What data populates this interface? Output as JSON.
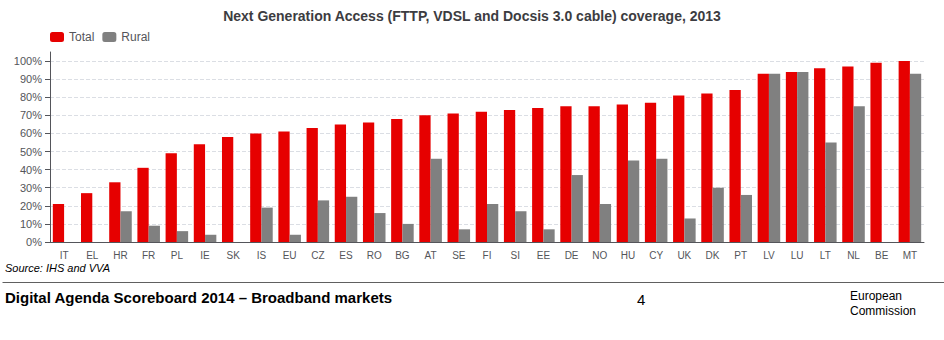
{
  "chart_data": {
    "type": "bar",
    "title": "Next Generation Access (FTTP, VDSL and Docsis 3.0 cable) coverage, 2013",
    "categories": [
      "IT",
      "EL",
      "HR",
      "FR",
      "PL",
      "IE",
      "SK",
      "IS",
      "EU",
      "CZ",
      "ES",
      "RO",
      "BG",
      "AT",
      "SE",
      "FI",
      "SI",
      "EE",
      "DE",
      "NO",
      "HU",
      "CY",
      "UK",
      "DK",
      "PT",
      "LV",
      "LU",
      "LT",
      "NL",
      "BE",
      "MT"
    ],
    "series": [
      {
        "name": "Total",
        "color": "#e60000",
        "values": [
          21,
          27,
          33,
          41,
          49,
          54,
          58,
          60,
          61,
          63,
          65,
          66,
          68,
          70,
          71,
          72,
          73,
          74,
          75,
          75,
          76,
          77,
          81,
          82,
          84,
          93,
          94,
          96,
          97,
          99,
          100
        ]
      },
      {
        "name": "Rural",
        "color": "#808080",
        "values": [
          0,
          0,
          17,
          9,
          6,
          4,
          0,
          19,
          4,
          23,
          25,
          16,
          10,
          46,
          7,
          21,
          17,
          7,
          37,
          21,
          45,
          46,
          13,
          30,
          26,
          93,
          94,
          55,
          75,
          0,
          93
        ]
      }
    ],
    "ylim": [
      0,
      105
    ],
    "yticks": [
      {
        "value": 0,
        "label": "0%"
      },
      {
        "value": 10,
        "label": "10%"
      },
      {
        "value": 20,
        "label": "20%"
      },
      {
        "value": 30,
        "label": "30%"
      },
      {
        "value": 40,
        "label": "40%"
      },
      {
        "value": 50,
        "label": "50%"
      },
      {
        "value": 60,
        "label": "60%"
      },
      {
        "value": 70,
        "label": "70%"
      },
      {
        "value": 80,
        "label": "80%"
      },
      {
        "value": 90,
        "label": "90%"
      },
      {
        "value": 100,
        "label": "100%"
      }
    ],
    "grid": true,
    "legend": "upper left",
    "annotations": [
      "Source: IHS and VVA",
      "Digital Agenda Scoreboard 2014 – Broadband markets",
      "4",
      "European\nCommission"
    ]
  }
}
